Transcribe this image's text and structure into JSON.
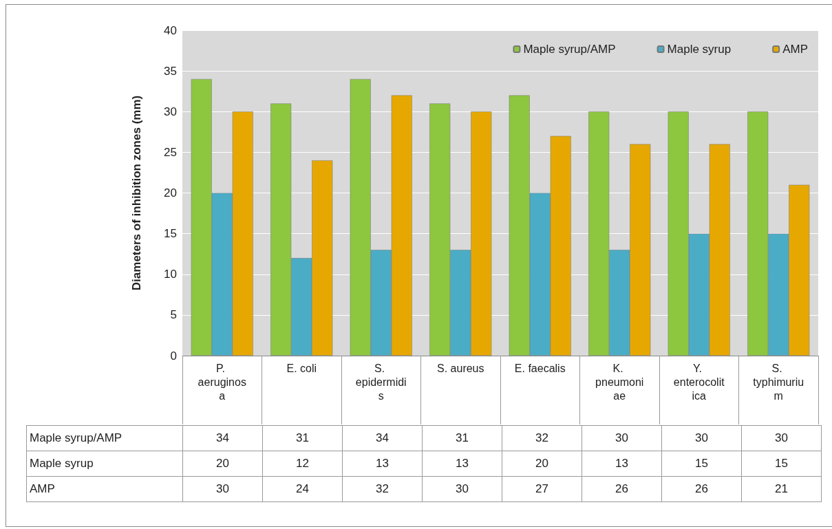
{
  "chart_data": {
    "type": "bar",
    "ylabel": "Diameters of inhibition zones (mm)",
    "categories": [
      "P. aeruginosa",
      "E. coli",
      "S. epidermidis",
      "S. aureus",
      "E. faecalis",
      "K. pneumoniae",
      "Y. enterocolitica",
      "S. typhimurium"
    ],
    "series": [
      {
        "name": "Maple syrup/AMP",
        "color": "#8dc63f",
        "values": [
          34,
          31,
          34,
          31,
          32,
          30,
          30,
          30
        ]
      },
      {
        "name": "Maple syrup",
        "color": "#4bacc6",
        "values": [
          20,
          12,
          13,
          13,
          20,
          13,
          15,
          15
        ]
      },
      {
        "name": "AMP",
        "color": "#e6a800",
        "values": [
          30,
          24,
          32,
          30,
          27,
          26,
          26,
          21
        ]
      }
    ],
    "ylim": [
      0,
      40
    ],
    "yticks": [
      0,
      5,
      10,
      15,
      20,
      25,
      30,
      35,
      40
    ],
    "grid": "y",
    "legend": "top right",
    "data_labels": true
  }
}
